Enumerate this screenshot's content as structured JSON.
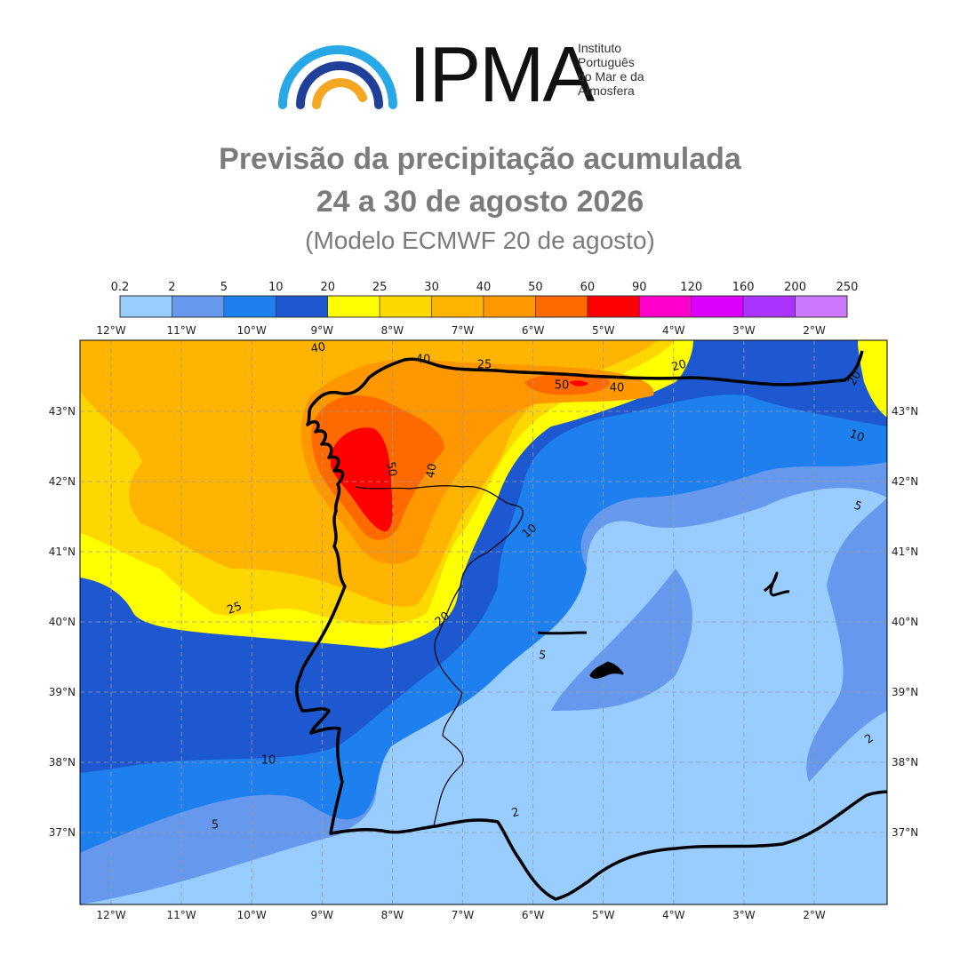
{
  "logo": {
    "name": "IPMA",
    "subtitle_lines": [
      "Instituto",
      "Português",
      "do Mar e da",
      "Atmosfera"
    ]
  },
  "title": {
    "line1": "Previsão da precipitação acumulada",
    "line2": "24 a 30 de agosto 2026",
    "line3": "(Modelo ECMWF 20 de agosto)"
  },
  "colorbar": {
    "levels": [
      "0.2",
      "2",
      "5",
      "10",
      "20",
      "25",
      "30",
      "40",
      "50",
      "60",
      "90",
      "120",
      "160",
      "200",
      "250"
    ],
    "colors": [
      "#99ccff",
      "#6699ee",
      "#1e7fee",
      "#1e58d0",
      "#ffff00",
      "#ffd700",
      "#ffb400",
      "#ff9800",
      "#ff6a00",
      "#ff0000",
      "#ff00cc",
      "#dd00ff",
      "#aa33ff",
      "#cc77ff",
      "#e6a8ff"
    ]
  },
  "axes": {
    "lon_labels": [
      "12°W",
      "11°W",
      "10°W",
      "9°W",
      "8°W",
      "7°W",
      "6°W",
      "5°W",
      "4°W",
      "3°W",
      "2°W"
    ],
    "lat_labels": [
      "43°N",
      "42°N",
      "41°N",
      "40°N",
      "39°N",
      "38°N",
      "37°N"
    ]
  },
  "contour_labels": [
    "40",
    "40",
    "25",
    "20",
    "50",
    "40",
    "20",
    "10",
    "50",
    "40",
    "10",
    "5",
    "25",
    "20",
    "5",
    "2",
    "10",
    "5",
    "2"
  ]
}
